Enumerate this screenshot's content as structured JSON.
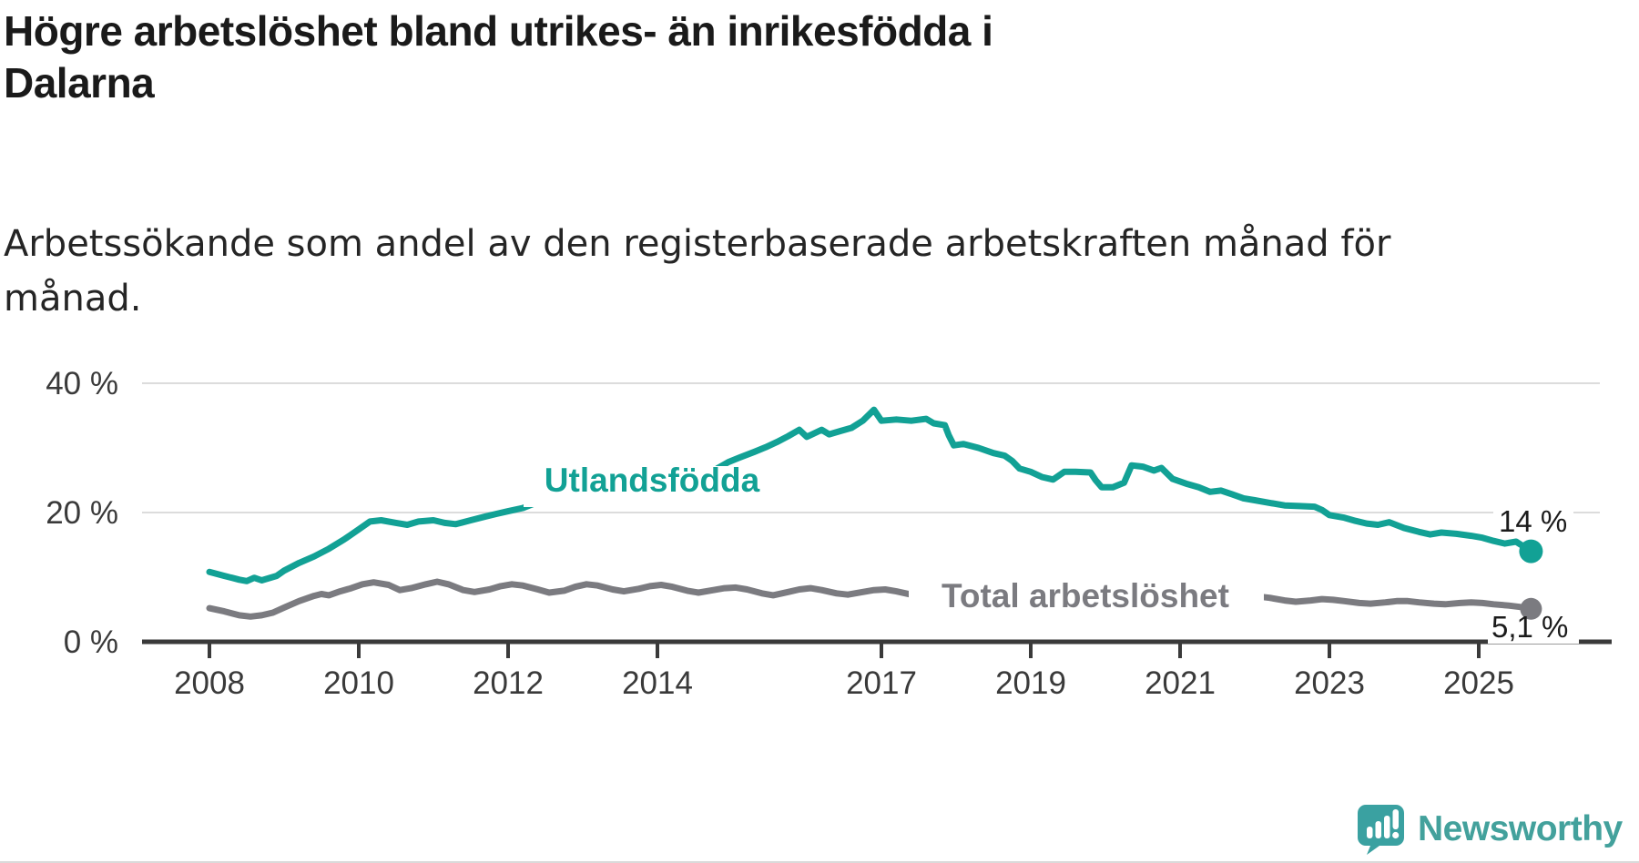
{
  "title": {
    "lines": [
      "Högre arbetslöshet bland utrikes- än inrikesfödda i",
      "Dalarna"
    ]
  },
  "subtitle": {
    "lines": [
      "Arbetssökande som andel av den registerbaserade arbetskraften månad för",
      "månad."
    ]
  },
  "chart_data": {
    "type": "line",
    "unit": "%",
    "grid": "horizontal",
    "x_axis": {
      "range": [
        2007.1,
        2026.6
      ],
      "ticks": [
        {
          "label": "2008",
          "year": 2008
        },
        {
          "label": "2010",
          "year": 2010
        },
        {
          "label": "2012",
          "year": 2012
        },
        {
          "label": "2014",
          "year": 2014
        },
        {
          "label": "2017",
          "year": 2017
        },
        {
          "label": "2019",
          "year": 2019
        },
        {
          "label": "2021",
          "year": 2021
        },
        {
          "label": "2023",
          "year": 2023
        },
        {
          "label": "2025",
          "year": 2025
        }
      ]
    },
    "y_axis": {
      "range": [
        0,
        40
      ],
      "ticks": [
        {
          "label": "0 %",
          "value": 0
        },
        {
          "label": "20 %",
          "value": 20
        },
        {
          "label": "40 %",
          "value": 40
        }
      ]
    },
    "series": [
      {
        "name": "Utlandsfödda",
        "color": "#12a195",
        "end_label": "14 %",
        "end_value": 14,
        "points": [
          [
            2008.0,
            10.8
          ],
          [
            2008.2,
            10.2
          ],
          [
            2008.4,
            9.6
          ],
          [
            2008.5,
            9.4
          ],
          [
            2008.6,
            9.9
          ],
          [
            2008.7,
            9.5
          ],
          [
            2008.9,
            10.2
          ],
          [
            2009.0,
            11.0
          ],
          [
            2009.2,
            12.2
          ],
          [
            2009.4,
            13.2
          ],
          [
            2009.6,
            14.4
          ],
          [
            2009.8,
            15.8
          ],
          [
            2010.0,
            17.4
          ],
          [
            2010.15,
            18.6
          ],
          [
            2010.3,
            18.8
          ],
          [
            2010.5,
            18.4
          ],
          [
            2010.65,
            18.1
          ],
          [
            2010.8,
            18.6
          ],
          [
            2011.0,
            18.8
          ],
          [
            2011.15,
            18.4
          ],
          [
            2011.3,
            18.2
          ],
          [
            2011.5,
            18.8
          ],
          [
            2011.7,
            19.4
          ],
          [
            2011.85,
            19.8
          ],
          [
            2012.0,
            20.2
          ],
          [
            2012.2,
            20.7
          ],
          [
            2012.35,
            21.4
          ],
          [
            2012.5,
            21.9
          ],
          [
            2012.6,
            21.5
          ],
          [
            2012.75,
            21.7
          ],
          [
            2012.9,
            22.1
          ],
          [
            2013.05,
            21.5
          ],
          [
            2013.2,
            21.8
          ],
          [
            2013.4,
            22.1
          ],
          [
            2013.6,
            22.0
          ],
          [
            2013.8,
            22.5
          ],
          [
            2014.0,
            23.1
          ],
          [
            2014.2,
            23.8
          ],
          [
            2014.4,
            24.4
          ],
          [
            2014.6,
            25.2
          ],
          [
            2014.8,
            26.8
          ],
          [
            2014.95,
            27.8
          ],
          [
            2015.1,
            28.5
          ],
          [
            2015.3,
            29.4
          ],
          [
            2015.45,
            30.1
          ],
          [
            2015.6,
            30.9
          ],
          [
            2015.75,
            31.8
          ],
          [
            2015.9,
            32.8
          ],
          [
            2016.0,
            31.7
          ],
          [
            2016.2,
            32.8
          ],
          [
            2016.3,
            32.1
          ],
          [
            2016.45,
            32.6
          ],
          [
            2016.6,
            33.1
          ],
          [
            2016.75,
            34.2
          ],
          [
            2016.9,
            35.9
          ],
          [
            2017.0,
            34.2
          ],
          [
            2017.2,
            34.4
          ],
          [
            2017.4,
            34.2
          ],
          [
            2017.6,
            34.5
          ],
          [
            2017.7,
            33.8
          ],
          [
            2017.85,
            33.5
          ],
          [
            2017.9,
            32.0
          ],
          [
            2017.97,
            30.4
          ],
          [
            2018.1,
            30.6
          ],
          [
            2018.3,
            30.0
          ],
          [
            2018.5,
            29.2
          ],
          [
            2018.65,
            28.8
          ],
          [
            2018.75,
            28.0
          ],
          [
            2018.85,
            26.8
          ],
          [
            2019.0,
            26.3
          ],
          [
            2019.15,
            25.5
          ],
          [
            2019.3,
            25.1
          ],
          [
            2019.45,
            26.3
          ],
          [
            2019.6,
            26.3
          ],
          [
            2019.8,
            26.2
          ],
          [
            2019.87,
            25.0
          ],
          [
            2019.95,
            23.9
          ],
          [
            2020.1,
            23.9
          ],
          [
            2020.25,
            24.6
          ],
          [
            2020.35,
            27.3
          ],
          [
            2020.5,
            27.1
          ],
          [
            2020.65,
            26.5
          ],
          [
            2020.75,
            26.9
          ],
          [
            2020.9,
            25.2
          ],
          [
            2021.1,
            24.4
          ],
          [
            2021.25,
            23.9
          ],
          [
            2021.4,
            23.2
          ],
          [
            2021.55,
            23.4
          ],
          [
            2021.7,
            22.8
          ],
          [
            2021.85,
            22.2
          ],
          [
            2022.0,
            21.9
          ],
          [
            2022.2,
            21.5
          ],
          [
            2022.4,
            21.1
          ],
          [
            2022.6,
            21.0
          ],
          [
            2022.8,
            20.9
          ],
          [
            2022.9,
            20.4
          ],
          [
            2023.0,
            19.6
          ],
          [
            2023.2,
            19.2
          ],
          [
            2023.35,
            18.7
          ],
          [
            2023.5,
            18.3
          ],
          [
            2023.65,
            18.1
          ],
          [
            2023.8,
            18.5
          ],
          [
            2024.0,
            17.6
          ],
          [
            2024.2,
            17.0
          ],
          [
            2024.35,
            16.6
          ],
          [
            2024.5,
            16.9
          ],
          [
            2024.7,
            16.7
          ],
          [
            2024.9,
            16.4
          ],
          [
            2025.05,
            16.1
          ],
          [
            2025.2,
            15.6
          ],
          [
            2025.35,
            15.2
          ],
          [
            2025.5,
            15.5
          ],
          [
            2025.7,
            14.0
          ]
        ]
      },
      {
        "name": "Total arbetslöshet",
        "color": "#7b7b80",
        "end_label": "5,1 %",
        "end_value": 5.1,
        "points": [
          [
            2008.0,
            5.2
          ],
          [
            2008.2,
            4.7
          ],
          [
            2008.4,
            4.1
          ],
          [
            2008.55,
            3.9
          ],
          [
            2008.7,
            4.1
          ],
          [
            2008.85,
            4.5
          ],
          [
            2009.0,
            5.3
          ],
          [
            2009.2,
            6.3
          ],
          [
            2009.4,
            7.1
          ],
          [
            2009.5,
            7.4
          ],
          [
            2009.6,
            7.2
          ],
          [
            2009.75,
            7.8
          ],
          [
            2009.9,
            8.3
          ],
          [
            2010.05,
            8.9
          ],
          [
            2010.2,
            9.2
          ],
          [
            2010.4,
            8.8
          ],
          [
            2010.55,
            8.0
          ],
          [
            2010.7,
            8.3
          ],
          [
            2010.9,
            8.9
          ],
          [
            2011.05,
            9.3
          ],
          [
            2011.2,
            8.9
          ],
          [
            2011.4,
            8.0
          ],
          [
            2011.55,
            7.7
          ],
          [
            2011.75,
            8.1
          ],
          [
            2011.9,
            8.6
          ],
          [
            2012.05,
            8.9
          ],
          [
            2012.2,
            8.7
          ],
          [
            2012.4,
            8.1
          ],
          [
            2012.55,
            7.6
          ],
          [
            2012.75,
            7.9
          ],
          [
            2012.9,
            8.5
          ],
          [
            2013.05,
            8.9
          ],
          [
            2013.2,
            8.7
          ],
          [
            2013.4,
            8.1
          ],
          [
            2013.55,
            7.8
          ],
          [
            2013.75,
            8.2
          ],
          [
            2013.9,
            8.6
          ],
          [
            2014.05,
            8.8
          ],
          [
            2014.2,
            8.5
          ],
          [
            2014.4,
            7.9
          ],
          [
            2014.55,
            7.6
          ],
          [
            2014.75,
            8.0
          ],
          [
            2014.9,
            8.3
          ],
          [
            2015.05,
            8.4
          ],
          [
            2015.2,
            8.1
          ],
          [
            2015.4,
            7.5
          ],
          [
            2015.55,
            7.2
          ],
          [
            2015.75,
            7.7
          ],
          [
            2015.9,
            8.1
          ],
          [
            2016.05,
            8.3
          ],
          [
            2016.2,
            8.0
          ],
          [
            2016.4,
            7.5
          ],
          [
            2016.55,
            7.3
          ],
          [
            2016.75,
            7.7
          ],
          [
            2016.9,
            8.0
          ],
          [
            2017.05,
            8.1
          ],
          [
            2017.2,
            7.8
          ],
          [
            2017.4,
            7.3
          ],
          [
            2017.55,
            7.1
          ],
          [
            2017.75,
            7.4
          ],
          [
            2017.9,
            7.7
          ],
          [
            2018.05,
            7.8
          ],
          [
            2018.2,
            7.5
          ],
          [
            2018.4,
            7.0
          ],
          [
            2018.55,
            6.8
          ],
          [
            2018.75,
            7.1
          ],
          [
            2018.9,
            7.4
          ],
          [
            2019.05,
            7.5
          ],
          [
            2019.2,
            7.2
          ],
          [
            2019.4,
            6.8
          ],
          [
            2019.55,
            6.7
          ],
          [
            2019.75,
            7.0
          ],
          [
            2019.9,
            7.4
          ],
          [
            2020.05,
            7.7
          ],
          [
            2020.2,
            8.0
          ],
          [
            2020.4,
            8.3
          ],
          [
            2020.55,
            8.1
          ],
          [
            2020.75,
            7.8
          ],
          [
            2020.9,
            7.7
          ],
          [
            2021.05,
            7.6
          ],
          [
            2021.2,
            7.3
          ],
          [
            2021.4,
            6.9
          ],
          [
            2021.55,
            6.7
          ],
          [
            2021.75,
            6.8
          ],
          [
            2021.9,
            7.0
          ],
          [
            2022.05,
            7.0
          ],
          [
            2022.2,
            6.8
          ],
          [
            2022.4,
            6.4
          ],
          [
            2022.55,
            6.2
          ],
          [
            2022.75,
            6.4
          ],
          [
            2022.9,
            6.6
          ],
          [
            2023.05,
            6.5
          ],
          [
            2023.2,
            6.3
          ],
          [
            2023.4,
            6.0
          ],
          [
            2023.55,
            5.9
          ],
          [
            2023.75,
            6.1
          ],
          [
            2023.9,
            6.3
          ],
          [
            2024.05,
            6.3
          ],
          [
            2024.2,
            6.1
          ],
          [
            2024.4,
            5.9
          ],
          [
            2024.55,
            5.8
          ],
          [
            2024.75,
            6.0
          ],
          [
            2024.9,
            6.1
          ],
          [
            2025.05,
            6.0
          ],
          [
            2025.2,
            5.8
          ],
          [
            2025.4,
            5.6
          ],
          [
            2025.55,
            5.4
          ],
          [
            2025.7,
            5.1
          ]
        ]
      }
    ]
  },
  "branding": {
    "wordmark": "Newsworthy",
    "logo_color": "#3aa1a1",
    "wordmark_color": "#43a19c"
  }
}
